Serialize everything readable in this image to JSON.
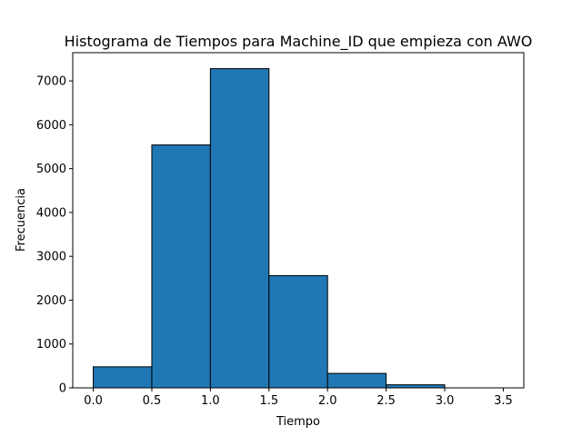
{
  "chart_data": {
    "type": "bar",
    "title": "Histograma de Tiempos para Machine_ID que empieza con AWO",
    "xlabel": "Tiempo",
    "ylabel": "Frecuencia",
    "bins": [
      {
        "start": 0.0,
        "end": 0.5,
        "count": 480
      },
      {
        "start": 0.5,
        "end": 1.0,
        "count": 5540
      },
      {
        "start": 1.0,
        "end": 1.5,
        "count": 7280
      },
      {
        "start": 1.5,
        "end": 2.0,
        "count": 2560
      },
      {
        "start": 2.0,
        "end": 2.5,
        "count": 330
      },
      {
        "start": 2.5,
        "end": 3.0,
        "count": 70
      },
      {
        "start": 3.0,
        "end": 3.5,
        "count": 0
      }
    ],
    "xlim": [
      -0.175,
      3.675
    ],
    "ylim": [
      0,
      7644
    ],
    "xticks": [
      "0.0",
      "0.5",
      "1.0",
      "1.5",
      "2.0",
      "2.5",
      "3.0",
      "3.5"
    ],
    "yticks": [
      "0",
      "1000",
      "2000",
      "3000",
      "4000",
      "5000",
      "6000",
      "7000"
    ],
    "bar_color": "#1f77b4",
    "edge_color": "#000000",
    "grid": false,
    "legend": "none"
  }
}
